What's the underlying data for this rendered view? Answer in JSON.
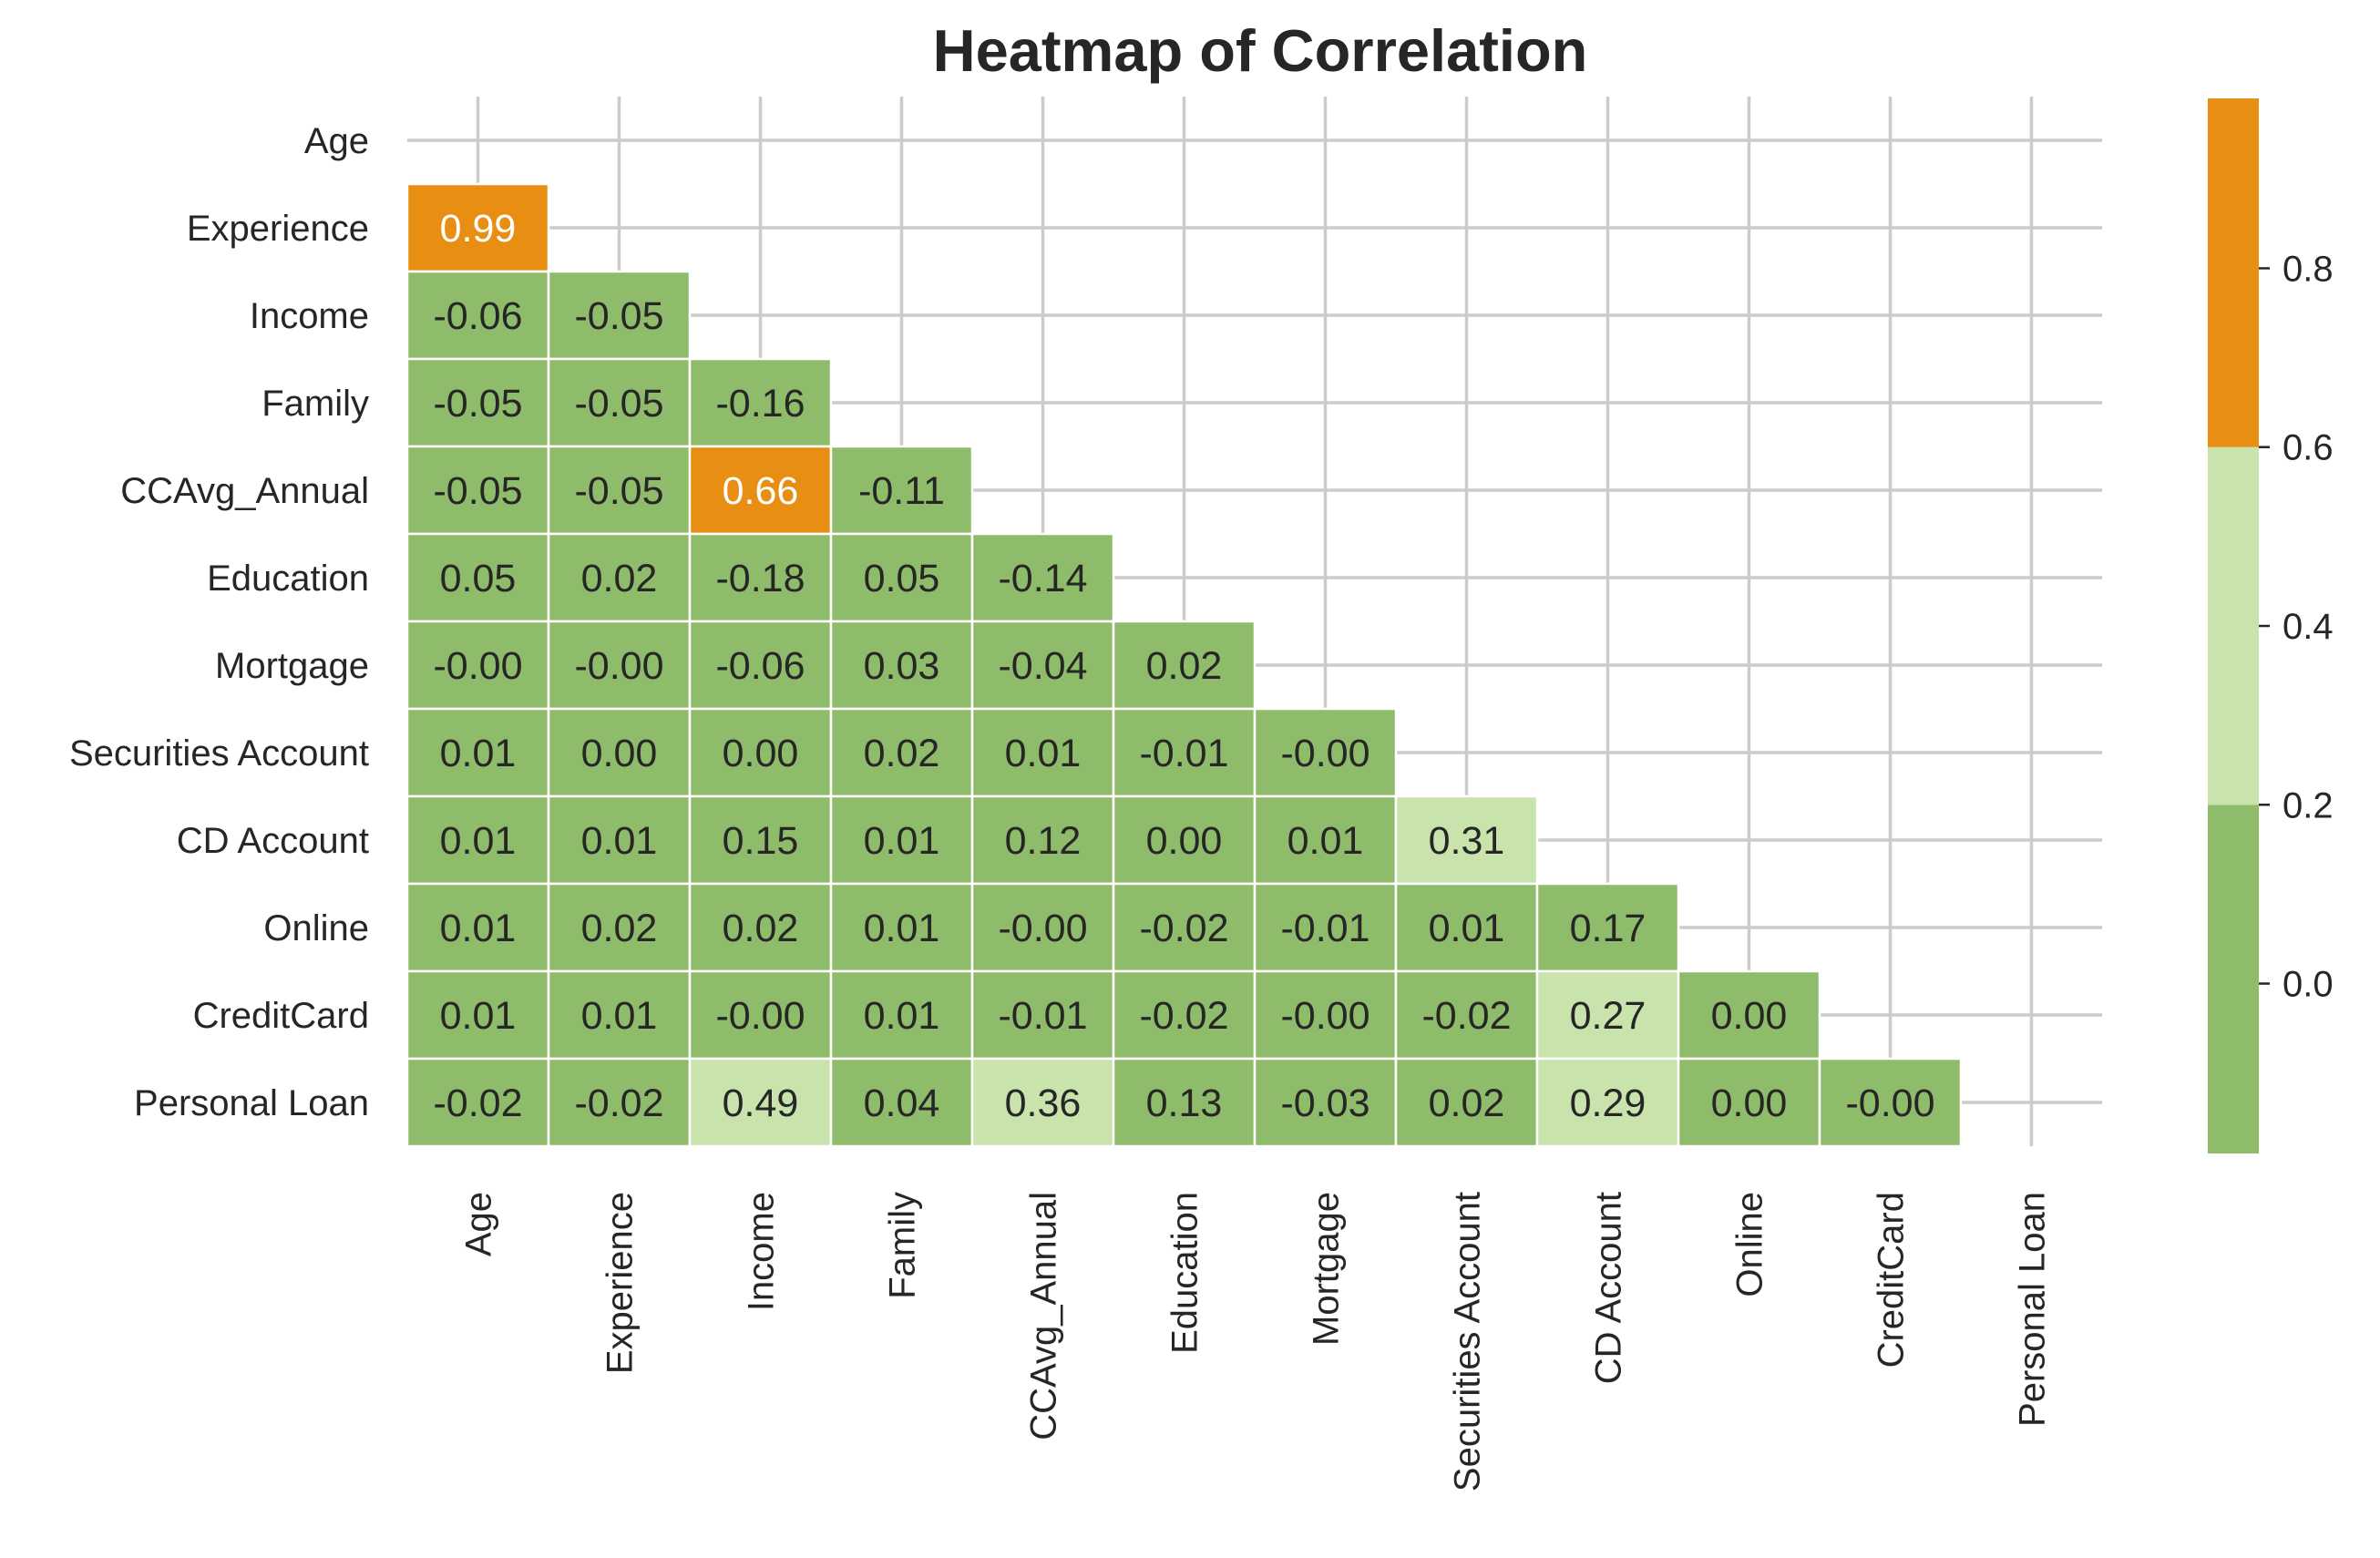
{
  "chart_data": {
    "type": "heatmap",
    "title": "Heatmap of Correlation",
    "labels": [
      "Age",
      "Experience",
      "Income",
      "Family",
      "CCAvg_Annual",
      "Education",
      "Mortgage",
      "Securities Account",
      "CD Account",
      "Online",
      "CreditCard",
      "Personal Loan"
    ],
    "mask": "upper triangle incl. diagonal",
    "matrix": [
      [
        null,
        null,
        null,
        null,
        null,
        null,
        null,
        null,
        null,
        null,
        null,
        null
      ],
      [
        "0.99",
        null,
        null,
        null,
        null,
        null,
        null,
        null,
        null,
        null,
        null,
        null
      ],
      [
        "-0.06",
        "-0.05",
        null,
        null,
        null,
        null,
        null,
        null,
        null,
        null,
        null,
        null
      ],
      [
        "-0.05",
        "-0.05",
        "-0.16",
        null,
        null,
        null,
        null,
        null,
        null,
        null,
        null,
        null
      ],
      [
        "-0.05",
        "-0.05",
        "0.66",
        "-0.11",
        null,
        null,
        null,
        null,
        null,
        null,
        null,
        null
      ],
      [
        "0.05",
        "0.02",
        "-0.18",
        "0.05",
        "-0.14",
        null,
        null,
        null,
        null,
        null,
        null,
        null
      ],
      [
        "-0.00",
        "-0.00",
        "-0.06",
        "0.03",
        "-0.04",
        "0.02",
        null,
        null,
        null,
        null,
        null,
        null
      ],
      [
        "0.01",
        "0.00",
        "0.00",
        "0.02",
        "0.01",
        "-0.01",
        "-0.00",
        null,
        null,
        null,
        null,
        null
      ],
      [
        "0.01",
        "0.01",
        "0.15",
        "0.01",
        "0.12",
        "0.00",
        "0.01",
        "0.31",
        null,
        null,
        null,
        null
      ],
      [
        "0.01",
        "0.02",
        "0.02",
        "0.01",
        "-0.00",
        "-0.02",
        "-0.01",
        "0.01",
        "0.17",
        null,
        null,
        null
      ],
      [
        "0.01",
        "0.01",
        "-0.00",
        "0.01",
        "-0.01",
        "-0.02",
        "-0.00",
        "-0.02",
        "0.27",
        "0.00",
        null,
        null
      ],
      [
        "-0.02",
        "-0.02",
        "0.49",
        "0.04",
        "0.36",
        "0.13",
        "-0.03",
        "0.02",
        "0.29",
        "0.00",
        "-0.00",
        null
      ]
    ],
    "colorbar": {
      "bins": [
        {
          "min": -0.19,
          "max": 0.2,
          "color": "#8fbc6b"
        },
        {
          "min": 0.2,
          "max": 0.6,
          "color": "#c9e3ad"
        },
        {
          "min": 0.6,
          "max": 0.99,
          "color": "#e88f13"
        }
      ],
      "range": [
        -0.19,
        0.99
      ],
      "ticks": [
        "0.0",
        "0.2",
        "0.4",
        "0.6",
        "0.8"
      ]
    },
    "grid": true
  }
}
